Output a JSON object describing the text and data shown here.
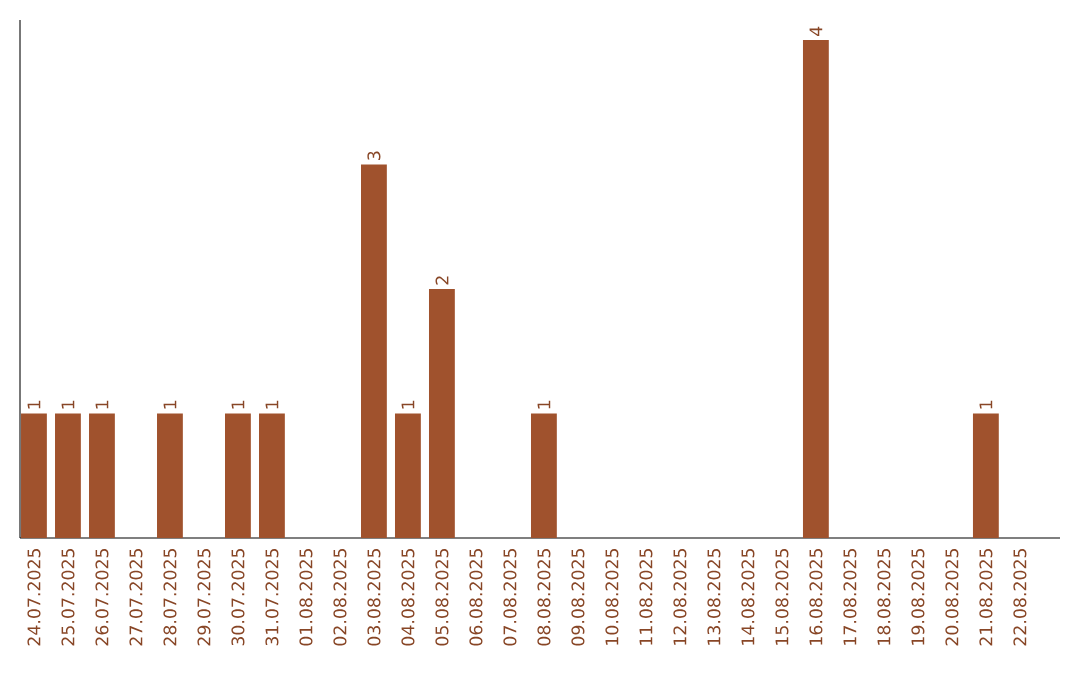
{
  "chart_data": {
    "type": "bar",
    "color": "#a0522d",
    "categories": [
      "24.07.2025",
      "25.07.2025",
      "26.07.2025",
      "27.07.2025",
      "28.07.2025",
      "29.07.2025",
      "30.07.2025",
      "31.07.2025",
      "01.08.2025",
      "02.08.2025",
      "03.08.2025",
      "04.08.2025",
      "05.08.2025",
      "06.08.2025",
      "07.08.2025",
      "08.08.2025",
      "09.08.2025",
      "10.08.2025",
      "11.08.2025",
      "12.08.2025",
      "13.08.2025",
      "14.08.2025",
      "15.08.2025",
      "16.08.2025",
      "17.08.2025",
      "18.08.2025",
      "19.08.2025",
      "20.08.2025",
      "21.08.2025",
      "22.08.2025"
    ],
    "values": [
      1,
      1,
      1,
      0,
      1,
      0,
      1,
      1,
      0,
      0,
      3,
      1,
      2,
      0,
      0,
      1,
      0,
      0,
      0,
      0,
      0,
      0,
      0,
      4,
      0,
      0,
      0,
      0,
      1,
      0
    ],
    "value_labels": [
      "1",
      "1",
      "1",
      null,
      "1",
      null,
      "1",
      "1",
      null,
      null,
      "3",
      "1",
      "2",
      null,
      null,
      "1",
      null,
      null,
      null,
      null,
      null,
      null,
      null,
      "4",
      null,
      null,
      null,
      null,
      "1",
      null
    ],
    "tick_labels": "x",
    "grid": false
  }
}
